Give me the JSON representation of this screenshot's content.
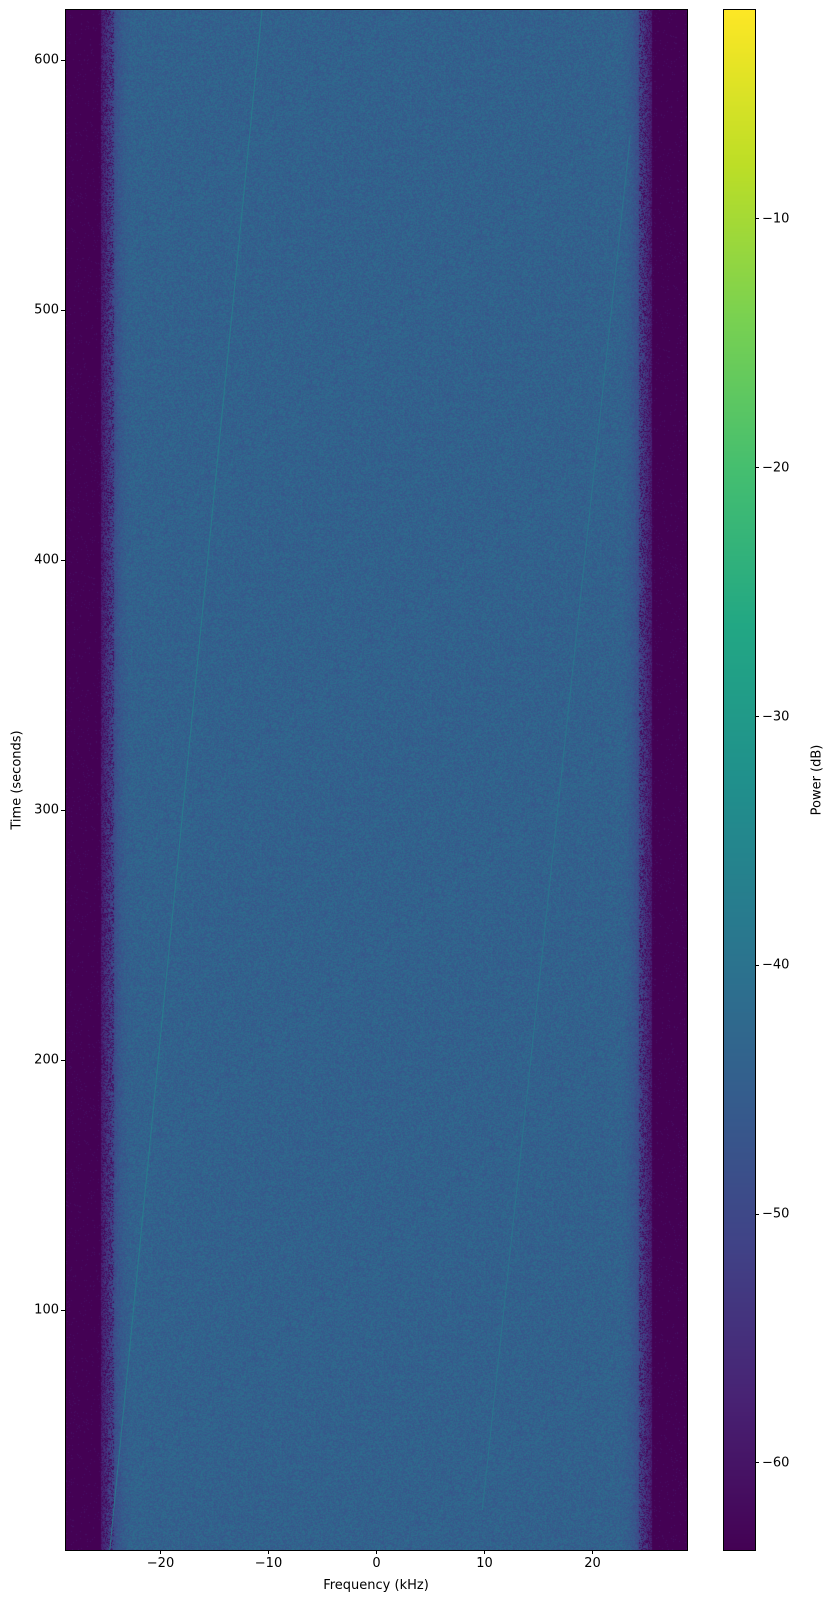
{
  "chart_data": {
    "type": "heatmap",
    "subtype": "spectrogram",
    "xlabel": "Frequency (kHz)",
    "ylabel": "Time (seconds)",
    "colorbar_label": "Power (dB)",
    "colormap": "viridis",
    "xlim": [
      -28.75,
      28.75
    ],
    "ylim": [
      4,
      620
    ],
    "clim": [
      -63.5,
      -1.6
    ],
    "xticks": [
      -20,
      -10,
      0,
      10,
      20
    ],
    "xtick_labels": [
      "−20",
      "−10",
      "0",
      "10",
      "20"
    ],
    "yticks": [
      100,
      200,
      300,
      400,
      500,
      600
    ],
    "ytick_labels": [
      "100",
      "200",
      "300",
      "400",
      "500",
      "600"
    ],
    "cticks": [
      -60,
      -50,
      -40,
      -30,
      -20,
      -10
    ],
    "ctick_labels": [
      "−60",
      "−50",
      "−40",
      "−30",
      "−20",
      "−10"
    ],
    "passband_khz": [
      -25.5,
      25.5
    ],
    "noise_floor_db": -44,
    "out_of_band_db": -63.5,
    "signals": [
      {
        "freq_start_khz": -24.7,
        "time_start_s": 4,
        "freq_end_khz": -10.6,
        "time_end_s": 620,
        "power_db": -36
      },
      {
        "freq_start_khz": 9.8,
        "time_start_s": 20,
        "freq_end_khz": 23.5,
        "time_end_s": 570,
        "power_db": -38
      }
    ]
  }
}
